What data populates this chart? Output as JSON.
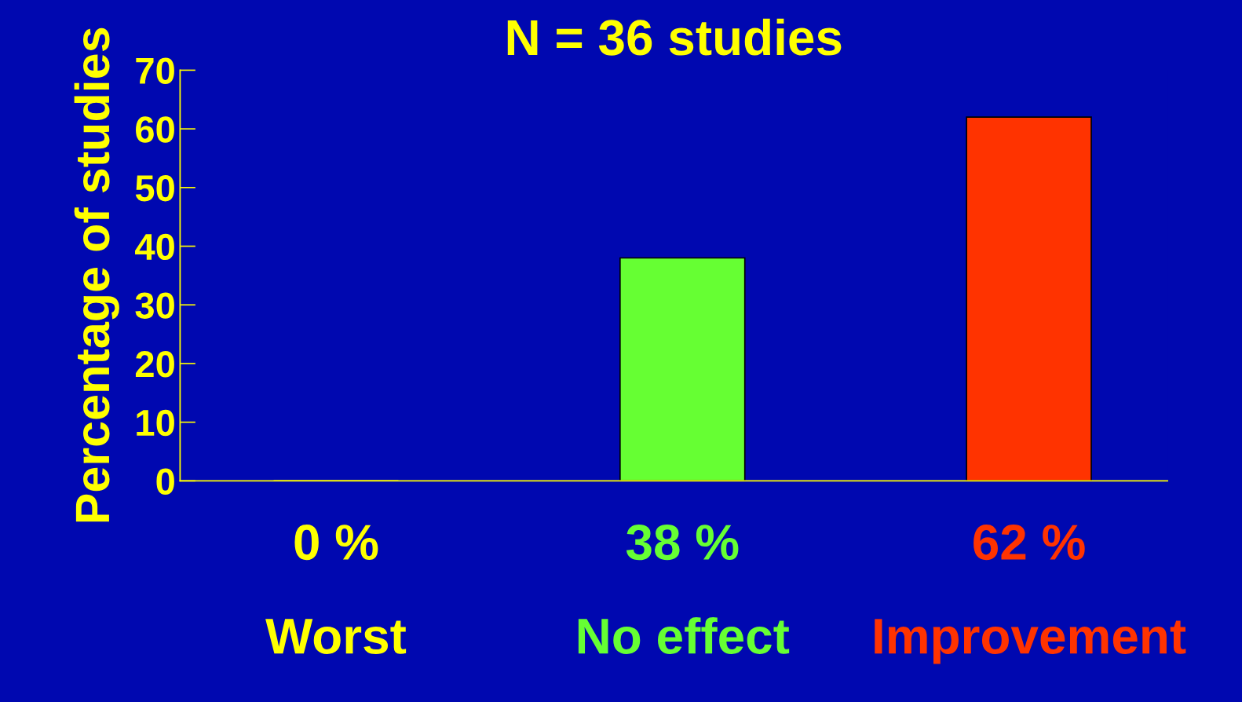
{
  "chart_data": {
    "type": "bar",
    "title": "N = 36 studies",
    "ylabel": "Percentage of studies",
    "categories": [
      "Worst",
      "No effect",
      "Improvement"
    ],
    "values": [
      0,
      38,
      62
    ],
    "colors": [
      "#ffff00",
      "#66ff33",
      "#ff3300"
    ],
    "value_labels": [
      "0 %",
      "38 %",
      "62 %"
    ],
    "ylim": [
      0,
      70
    ],
    "yticks": [
      0,
      10,
      20,
      30,
      40,
      50,
      60,
      70
    ],
    "grid": false
  }
}
